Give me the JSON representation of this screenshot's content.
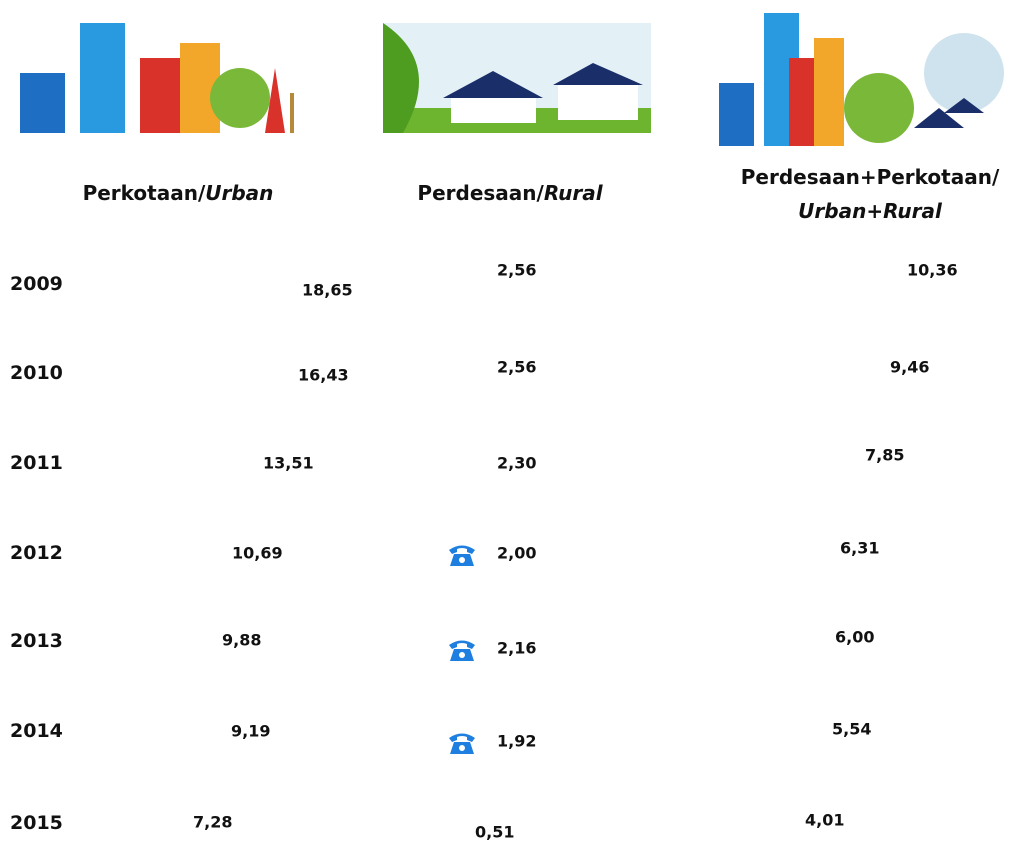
{
  "columns": [
    {
      "title": "Perkotaan/",
      "title_italic": "Urban"
    },
    {
      "title": "Perdesaan/",
      "title_italic": "Rural"
    },
    {
      "title": "Perdesaan+Perkotaan/",
      "title_italic": "Urban+Rural"
    }
  ],
  "rows": [
    {
      "year": "2009",
      "values": [
        "18,65",
        "2,56",
        "10,36"
      ]
    },
    {
      "year": "2010",
      "values": [
        "16,43",
        "2,56",
        "9,46"
      ]
    },
    {
      "year": "2011",
      "values": [
        "13,51",
        "2,30",
        "7,85"
      ]
    },
    {
      "year": "2012",
      "values": [
        "10,69",
        "2,00",
        "6,31"
      ]
    },
    {
      "year": "2013",
      "values": [
        "9,88",
        "2,16",
        "6,00"
      ]
    },
    {
      "year": "2014",
      "values": [
        "9,19",
        "1,92",
        "5,54"
      ]
    },
    {
      "year": "2015",
      "values": [
        "7,28",
        "0,51",
        "4,01"
      ]
    }
  ]
}
